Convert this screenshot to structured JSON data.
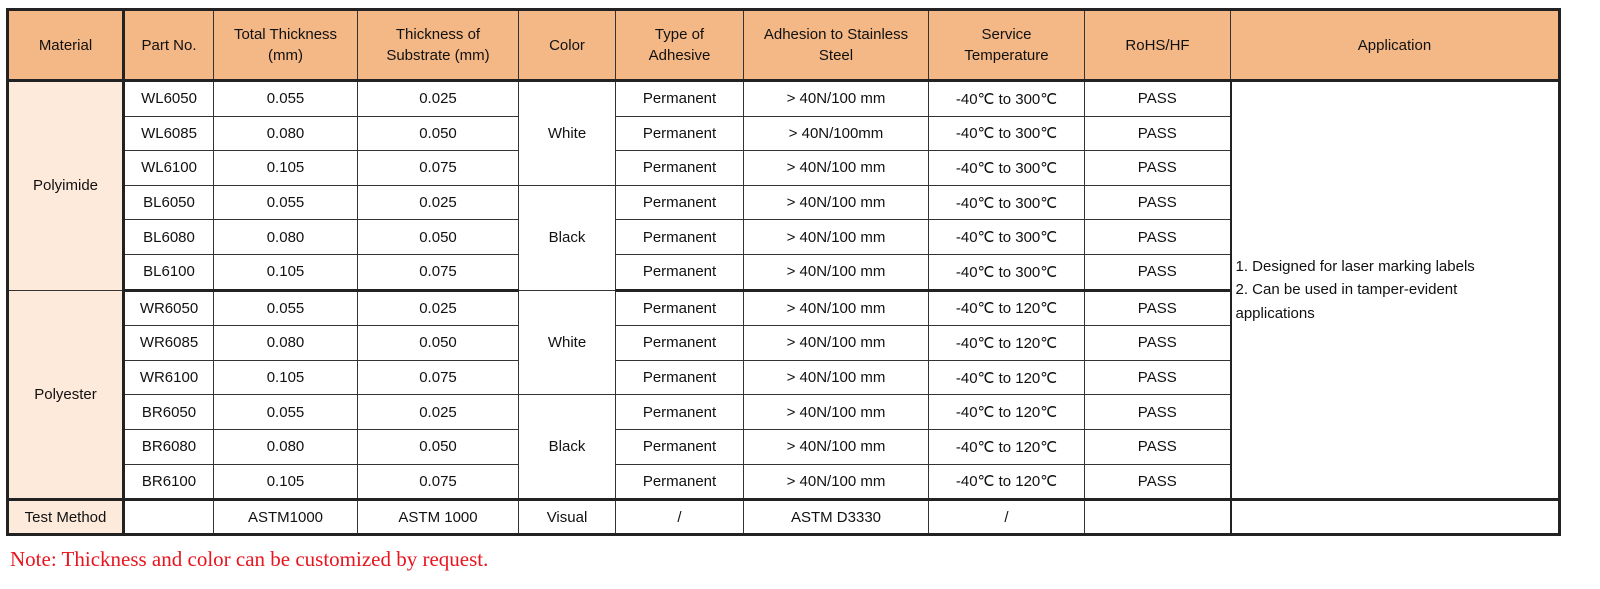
{
  "headers": [
    "Material",
    "Part No.",
    "Total Thickness\n(mm)",
    "Thickness of\nSubstrate (mm)",
    "Color",
    "Type of\nAdhesive",
    "Adhesion to Stainless\nSteel",
    "Service\nTemperature",
    "RoHS/HF",
    "Application"
  ],
  "groups": [
    {
      "material": "Polyimide",
      "colors": [
        {
          "color": "White",
          "rows": [
            {
              "part": "WL6050",
              "total": "0.055",
              "substrate": "0.025",
              "adhesive": "Permanent",
              "adhesion": "> 40N/100 mm",
              "temp": "-40℃ to 300℃",
              "rohs": "PASS"
            },
            {
              "part": "WL6085",
              "total": "0.080",
              "substrate": "0.050",
              "adhesive": "Permanent",
              "adhesion": "> 40N/100mm",
              "temp": "-40℃ to 300℃",
              "rohs": "PASS"
            },
            {
              "part": "WL6100",
              "total": "0.105",
              "substrate": "0.075",
              "adhesive": "Permanent",
              "adhesion": "> 40N/100 mm",
              "temp": "-40℃ to 300℃",
              "rohs": "PASS"
            }
          ]
        },
        {
          "color": "Black",
          "rows": [
            {
              "part": "BL6050",
              "total": "0.055",
              "substrate": "0.025",
              "adhesive": "Permanent",
              "adhesion": "> 40N/100 mm",
              "temp": "-40℃ to 300℃",
              "rohs": "PASS"
            },
            {
              "part": "BL6080",
              "total": "0.080",
              "substrate": "0.050",
              "adhesive": "Permanent",
              "adhesion": "> 40N/100 mm",
              "temp": "-40℃ to 300℃",
              "rohs": "PASS"
            },
            {
              "part": "BL6100",
              "total": "0.105",
              "substrate": "0.075",
              "adhesive": "Permanent",
              "adhesion": "> 40N/100 mm",
              "temp": "-40℃ to 300℃",
              "rohs": "PASS"
            }
          ]
        }
      ]
    },
    {
      "material": "Polyester",
      "colors": [
        {
          "color": "White",
          "rows": [
            {
              "part": "WR6050",
              "total": "0.055",
              "substrate": "0.025",
              "adhesive": "Permanent",
              "adhesion": "> 40N/100 mm",
              "temp": "-40℃ to 120℃",
              "rohs": "PASS"
            },
            {
              "part": "WR6085",
              "total": "0.080",
              "substrate": "0.050",
              "adhesive": "Permanent",
              "adhesion": "> 40N/100 mm",
              "temp": "-40℃ to 120℃",
              "rohs": "PASS"
            },
            {
              "part": "WR6100",
              "total": "0.105",
              "substrate": "0.075",
              "adhesive": "Permanent",
              "adhesion": "> 40N/100 mm",
              "temp": "-40℃ to 120℃",
              "rohs": "PASS"
            }
          ]
        },
        {
          "color": "Black",
          "rows": [
            {
              "part": "BR6050",
              "total": "0.055",
              "substrate": "0.025",
              "adhesive": "Permanent",
              "adhesion": "> 40N/100 mm",
              "temp": "-40℃ to 120℃",
              "rohs": "PASS"
            },
            {
              "part": "BR6080",
              "total": "0.080",
              "substrate": "0.050",
              "adhesive": "Permanent",
              "adhesion": "> 40N/100 mm",
              "temp": "-40℃ to 120℃",
              "rohs": "PASS"
            },
            {
              "part": "BR6100",
              "total": "0.105",
              "substrate": "0.075",
              "adhesive": "Permanent",
              "adhesion": "> 40N/100 mm",
              "temp": "-40℃ to 120℃",
              "rohs": "PASS"
            }
          ]
        }
      ]
    }
  ],
  "application": [
    "1. Designed for laser marking labels",
    "2. Can be used in tamper-evident",
    "applications"
  ],
  "test_method": [
    "Test Method",
    "",
    "ASTM1000",
    "ASTM 1000",
    "Visual",
    "/",
    "ASTM D3330",
    "/",
    "",
    ""
  ],
  "note": "Note: Thickness  and color can be customized by request.",
  "colors": {
    "header_bg": "#f4b886",
    "material_bg": "#fdeadb",
    "note_text": "#e8141e"
  }
}
